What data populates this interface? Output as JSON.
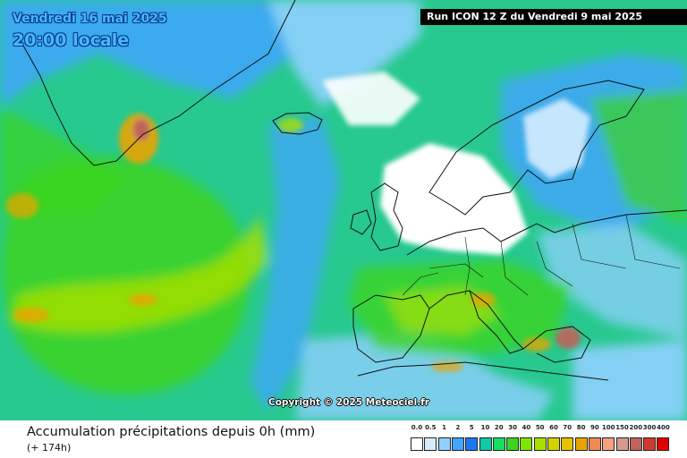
{
  "valid_time": {
    "date": "Vendredi 16 mai 2025",
    "time": "20:00 locale"
  },
  "run_info": "Run ICON 12 Z du Vendredi 9 mai 2025",
  "copyright": "Copyright © 2025 Meteociel.fr",
  "footer": {
    "title": "Accumulation précipitations depuis 0h (mm)",
    "subtitle": "(+ 174h)"
  },
  "legend": {
    "labels": [
      "0.0",
      "0.5",
      "1",
      "2",
      "5",
      "10",
      "20",
      "30",
      "40",
      "50",
      "60",
      "70",
      "80",
      "90",
      "100",
      "150",
      "200",
      "300",
      "400"
    ],
    "colors": [
      "#ffffff",
      "#d4ecff",
      "#8fd0ff",
      "#41a4ff",
      "#1d77f2",
      "#0fc9a7",
      "#12e05e",
      "#3cd41e",
      "#7ee600",
      "#a8e000",
      "#d2d400",
      "#e7c200",
      "#eaa400",
      "#ef8a52",
      "#f7a080",
      "#d49a8e",
      "#c0635c",
      "#d03a2c",
      "#e00000"
    ]
  },
  "map_colors": {
    "ocean_base": "#27c98f",
    "light_blue": "#8fd0ff",
    "mid_blue": "#41a4ff",
    "white": "#ffffff",
    "green": "#3cd41e",
    "yellow_green": "#a8e000",
    "orange": "#eaa400",
    "red": "#c0635c"
  }
}
